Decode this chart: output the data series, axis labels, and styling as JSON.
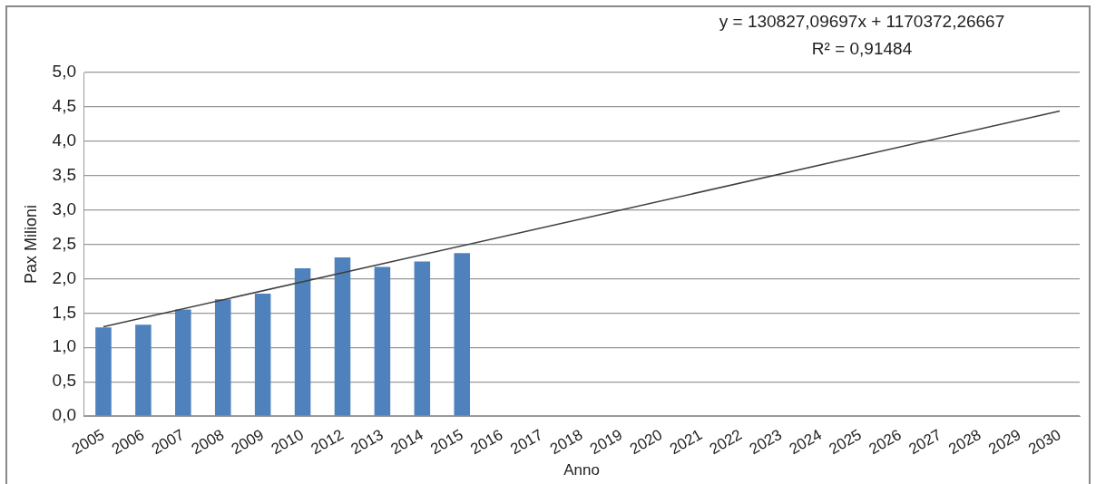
{
  "chart_data": {
    "type": "bar",
    "xlabel": "Anno",
    "ylabel": "Pax Milioni",
    "categories": [
      "2005",
      "2006",
      "2007",
      "2008",
      "2009",
      "2010",
      "2012",
      "2013",
      "2014",
      "2015",
      "2016",
      "2017",
      "2018",
      "2019",
      "2020",
      "2021",
      "2022",
      "2023",
      "2024",
      "2025",
      "2026",
      "2027",
      "2028",
      "2029",
      "2030"
    ],
    "series": [
      {
        "color": "#4f81bd",
        "values": [
          1.29,
          1.33,
          1.55,
          1.7,
          1.78,
          2.15,
          2.31,
          2.17,
          2.25,
          2.37,
          null,
          null,
          null,
          null,
          null,
          null,
          null,
          null,
          null,
          null,
          null,
          null,
          null,
          null,
          null
        ]
      },
      {
        "type": "line",
        "color": "#404040",
        "values": [
          1.3,
          null,
          null,
          null,
          null,
          null,
          null,
          null,
          null,
          null,
          null,
          null,
          null,
          null,
          null,
          null,
          null,
          null,
          null,
          null,
          null,
          null,
          null,
          null,
          4.44
        ]
      }
    ],
    "ylim": [
      0,
      5
    ],
    "yticks": [
      {
        "value": 0,
        "label": "0,0"
      },
      {
        "value": 0.5,
        "label": "0,5"
      },
      {
        "value": 1,
        "label": "1,0"
      },
      {
        "value": 1.5,
        "label": "1,5"
      },
      {
        "value": 2,
        "label": "2,0"
      },
      {
        "value": 2.5,
        "label": "2,5"
      },
      {
        "value": 3,
        "label": "3,0"
      },
      {
        "value": 3.5,
        "label": "3,5"
      },
      {
        "value": 4,
        "label": "4,0"
      },
      {
        "value": 4.5,
        "label": "4,5"
      },
      {
        "value": 5,
        "label": "5,0"
      }
    ],
    "grid": "y",
    "legend": false,
    "marker": "none",
    "annotations": [
      "y = 130827,09697x + 1170372,26667",
      "R² = 0,91484"
    ]
  }
}
